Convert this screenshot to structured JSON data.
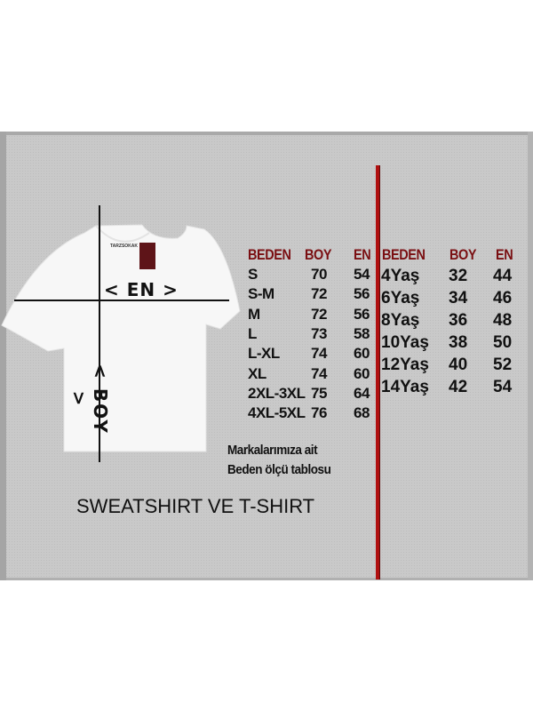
{
  "adult_table": {
    "headers": [
      "BEDEN",
      "BOY",
      "EN"
    ],
    "rows": [
      [
        "S",
        "70",
        "54"
      ],
      [
        "S-M",
        "72",
        "56"
      ],
      [
        "M",
        "72",
        "56"
      ],
      [
        "L",
        "73",
        "58"
      ],
      [
        "L-XL",
        "74",
        "60"
      ],
      [
        "XL",
        "74",
        "60"
      ],
      [
        "2XL-3XL",
        "75",
        "64"
      ],
      [
        "4XL-5XL",
        "76",
        "68"
      ]
    ]
  },
  "kids_table": {
    "headers": [
      "BEDEN",
      "BOY",
      "EN"
    ],
    "rows": [
      [
        "4Yaş",
        "32",
        "44"
      ],
      [
        "6Yaş",
        "34",
        "46"
      ],
      [
        "8Yaş",
        "36",
        "48"
      ],
      [
        "10Yaş",
        "38",
        "50"
      ],
      [
        "12Yaş",
        "40",
        "52"
      ],
      [
        "14Yaş",
        "42",
        "54"
      ]
    ]
  },
  "shirt": {
    "width_label": "< EN >",
    "length_label": "< BOY >",
    "neck_label": "TARZSOKAK",
    "hang_tag": "TARZSOKAK"
  },
  "note": {
    "line1": "Markalarımıza ait",
    "line2": "Beden ölçü tablosu"
  },
  "title": "SWEATSHIRT VE T-SHIRT",
  "colors": {
    "header": "#7a0f12",
    "divider": "#b01010",
    "background": "#c9c9c9"
  }
}
